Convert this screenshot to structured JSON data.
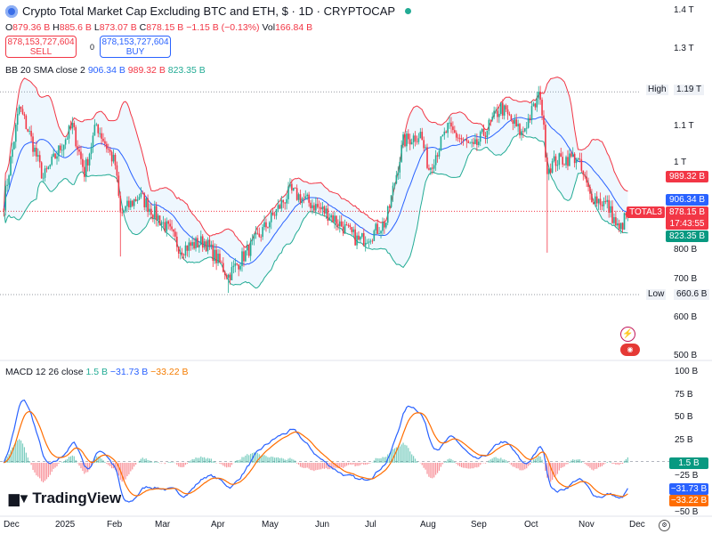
{
  "header": {
    "title": "Crypto Total Market Cap Excluding BTC and ETH, $ · 1D · CRYPTOCAP",
    "ohlc": {
      "o_label": "O",
      "o": "879.36 B",
      "h_label": "H",
      "h": "885.6 B",
      "l_label": "L",
      "l": "873.07 B",
      "c_label": "C",
      "c": "878.15 B",
      "change": "−1.15 B (−0.13%)",
      "vol_label": "Vol",
      "vol": "166.84 B"
    },
    "sell": {
      "price": "878,153,727,604",
      "label": "SELL"
    },
    "spread": "0",
    "buy": {
      "price": "878,153,727,604",
      "label": "BUY"
    },
    "bb": {
      "label": "BB 20 SMA close 2",
      "basis": "906.34 B",
      "upper": "989.32 B",
      "lower": "823.35 B"
    },
    "macd": {
      "label": "MACD 12 26 close",
      "hist": "1.5 B",
      "macd": "−31.73 B",
      "signal": "−33.22 B"
    }
  },
  "colors": {
    "up": "#22ab94",
    "down": "#f23645",
    "basis": "#2962ff",
    "upper": "#f23645",
    "lower": "#22ab94",
    "macd": "#2962ff",
    "signal": "#ff6d00"
  },
  "price_axis": {
    "ticks": [
      "1.4 T",
      "1.3 T",
      "1.1 T",
      "1 T",
      "800 B",
      "700 B",
      "600 B",
      "500 B"
    ],
    "high_label": "High",
    "high": "1.19 T",
    "low_label": "Low",
    "low": "660.6 B",
    "symbol": "TOTAL3",
    "last": "878.15 B",
    "countdown": "17:43:55"
  },
  "macd_axis": {
    "ticks": [
      "100 B",
      "75 B",
      "50 B",
      "25 B",
      "−25 B",
      "−50 B"
    ]
  },
  "time_axis": [
    "Dec",
    "2025",
    "Feb",
    "Mar",
    "Apr",
    "May",
    "Jun",
    "Jul",
    "Aug",
    "Sep",
    "Oct",
    "Nov",
    "Dec"
  ],
  "brand": "TradingView",
  "chart_data": {
    "type": "candlestick",
    "unit": "B USD",
    "start": "2024-11-27",
    "end": "2025-11-26",
    "close_path": [
      [
        "2024-11-27",
        900
      ],
      [
        "2024-12-06",
        1150
      ],
      [
        "2024-12-12",
        1080
      ],
      [
        "2024-12-20",
        965
      ],
      [
        "2025-01-06",
        1100
      ],
      [
        "2025-01-13",
        980
      ],
      [
        "2025-01-20",
        1105
      ],
      [
        "2025-01-31",
        1000
      ],
      [
        "2025-02-03",
        870
      ],
      [
        "2025-02-14",
        920
      ],
      [
        "2025-03-03",
        830
      ],
      [
        "2025-03-10",
        780
      ],
      [
        "2025-03-24",
        800
      ],
      [
        "2025-04-07",
        710
      ],
      [
        "2025-04-25",
        815
      ],
      [
        "2025-05-13",
        930
      ],
      [
        "2025-06-05",
        870
      ],
      [
        "2025-06-22",
        800
      ],
      [
        "2025-06-30",
        820
      ],
      [
        "2025-07-08",
        850
      ],
      [
        "2025-07-18",
        1060
      ],
      [
        "2025-07-28",
        1080
      ],
      [
        "2025-08-02",
        990
      ],
      [
        "2025-08-13",
        1095
      ],
      [
        "2025-08-28",
        1040
      ],
      [
        "2025-09-13",
        1150
      ],
      [
        "2025-09-25",
        1080
      ],
      [
        "2025-10-06",
        1185
      ],
      [
        "2025-10-10",
        990
      ],
      [
        "2025-10-15",
        1010
      ],
      [
        "2025-10-27",
        1020
      ],
      [
        "2025-11-04",
        920
      ],
      [
        "2025-11-14",
        895
      ],
      [
        "2025-11-21",
        825
      ],
      [
        "2025-11-26",
        878
      ]
    ],
    "price_range": [
      480,
      1430
    ],
    "macd_range": [
      -58,
      112
    ],
    "indicators": [
      "BB 20 2",
      "MACD 12 26 9"
    ]
  }
}
